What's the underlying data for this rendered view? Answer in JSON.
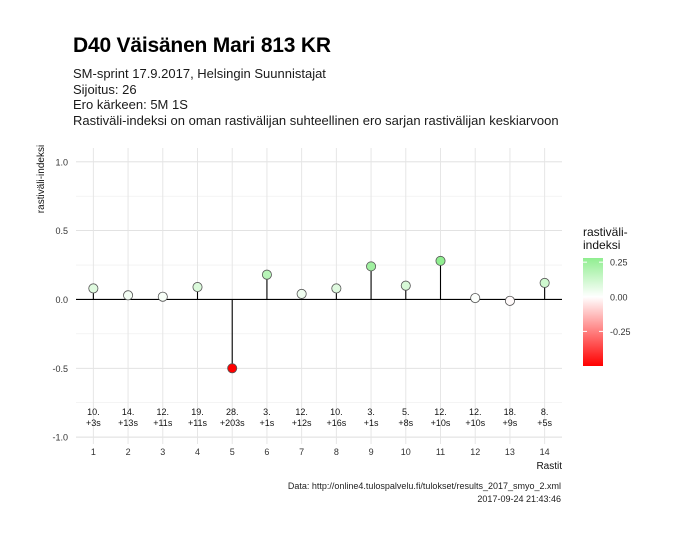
{
  "header": {
    "title": "D40 Väisänen Mari 813 KR",
    "subtitle_lines": [
      "SM-sprint 17.9.2017, Helsingin Suunnistajat",
      "Sijoitus: 26",
      "Ero kärkeen: 5M 1S",
      "Rastiväli-indeksi on oman rastivälijan suhteellinen ero sarjan rastivälijan keskiarvoon"
    ]
  },
  "caption": {
    "source": "Data: http://online4.tulospalvelu.fi/tulokset/results_2017_smyo_2.xml",
    "timestamp": "2017-09-24 21:43:46"
  },
  "chart_data": {
    "type": "lollipop",
    "xlabel": "Rastit",
    "ylabel": "rastiväli-indeksi",
    "x": [
      1,
      2,
      3,
      4,
      5,
      6,
      7,
      8,
      9,
      10,
      11,
      12,
      13,
      14
    ],
    "values": [
      0.08,
      0.03,
      0.02,
      0.09,
      -0.5,
      0.18,
      0.04,
      0.08,
      0.24,
      0.1,
      0.28,
      0.01,
      -0.01,
      0.12
    ],
    "point_labels_rank": [
      "10.",
      "14.",
      "12.",
      "19.",
      "28.",
      "3.",
      "12.",
      "10.",
      "3.",
      "5.",
      "12.",
      "12.",
      "18.",
      "8."
    ],
    "point_labels_diff": [
      "+3s",
      "+13s",
      "+11s",
      "+11s",
      "+203s",
      "+1s",
      "+12s",
      "+16s",
      "+1s",
      "+8s",
      "+10s",
      "+10s",
      "+9s",
      "+5s"
    ],
    "ylim": [
      -1.05,
      1.1
    ],
    "yticks": [
      -1.0,
      -0.5,
      0.0,
      0.5,
      1.0
    ],
    "ytick_labels": [
      "-1.0",
      "-0.5",
      "0.0",
      "0.5",
      "1.0"
    ],
    "xtick_labels": [
      "1",
      "2",
      "3",
      "4",
      "5",
      "6",
      "7",
      "8",
      "9",
      "10",
      "11",
      "12",
      "13",
      "14"
    ],
    "grid": true,
    "legend": {
      "title_lines": [
        "rastiväli-",
        "indeksi"
      ],
      "placement": "right",
      "ticks": [
        0.25,
        0.0,
        -0.25
      ],
      "tick_labels": [
        "0.25",
        "0.00",
        "-0.25"
      ],
      "range": [
        -0.5,
        0.28
      ]
    },
    "colors": {
      "high": "#90ee90",
      "mid": "#ffffff",
      "low": "#ff0000"
    }
  }
}
